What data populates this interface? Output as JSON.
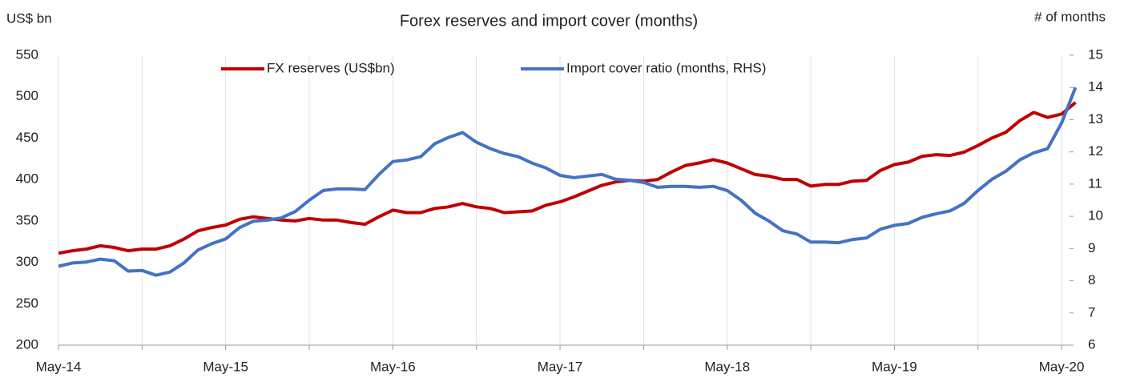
{
  "chart_data": {
    "type": "line",
    "title": "Forex reserves and import cover (months)",
    "y_label": "US$ bn",
    "y2_label": "# of months",
    "categories": [
      "May-14",
      null,
      null,
      null,
      null,
      null,
      null,
      null,
      null,
      null,
      null,
      null,
      "May-15",
      null,
      null,
      null,
      null,
      null,
      null,
      null,
      null,
      null,
      null,
      null,
      "May-16",
      null,
      null,
      null,
      null,
      null,
      null,
      null,
      null,
      null,
      null,
      null,
      "May-17",
      null,
      null,
      null,
      null,
      null,
      null,
      null,
      null,
      null,
      null,
      null,
      "May-18",
      null,
      null,
      null,
      null,
      null,
      null,
      null,
      null,
      null,
      null,
      null,
      "May-19",
      null,
      null,
      null,
      null,
      null,
      null,
      null,
      null,
      null,
      null,
      null,
      "May-20",
      null
    ],
    "series": [
      {
        "name": "FX reserves (US$bn)",
        "color": "#c00000",
        "values": [
          311,
          314,
          316,
          320,
          318,
          314,
          316,
          316,
          320,
          328,
          338,
          342,
          345,
          352,
          355,
          353,
          351,
          350,
          353,
          351,
          351,
          348,
          346,
          355,
          363,
          360,
          360,
          365,
          367,
          371,
          367,
          365,
          360,
          361,
          362,
          369,
          373,
          379,
          386,
          393,
          397,
          399,
          398,
          400,
          409,
          417,
          420,
          424,
          420,
          413,
          406,
          404,
          400,
          400,
          392,
          394,
          394,
          398,
          399,
          411,
          418,
          421,
          428,
          430,
          429,
          433,
          441,
          450,
          457,
          471,
          481,
          475,
          479,
          493
        ]
      },
      {
        "name": "Import cover ratio (months, RHS)",
        "color": "#4472c4",
        "axis": "y2",
        "values": [
          8.45,
          8.55,
          8.58,
          8.67,
          8.62,
          8.3,
          8.32,
          8.17,
          8.27,
          8.55,
          8.95,
          9.15,
          9.3,
          9.65,
          9.85,
          9.88,
          9.95,
          10.15,
          10.5,
          10.8,
          10.85,
          10.85,
          10.83,
          11.3,
          11.7,
          11.75,
          11.85,
          12.25,
          12.45,
          12.6,
          12.3,
          12.1,
          11.95,
          11.85,
          11.65,
          11.5,
          11.27,
          11.2,
          11.25,
          11.3,
          11.15,
          11.12,
          11.05,
          10.9,
          10.93,
          10.93,
          10.9,
          10.93,
          10.8,
          10.5,
          10.1,
          9.85,
          9.55,
          9.45,
          9.2,
          9.2,
          9.18,
          9.28,
          9.33,
          9.6,
          9.72,
          9.78,
          9.97,
          10.08,
          10.17,
          10.4,
          10.8,
          11.15,
          11.4,
          11.75,
          11.97,
          12.1,
          12.9,
          14.0
        ]
      }
    ],
    "ylim": [
      200,
      550
    ],
    "yticks": [
      200,
      250,
      300,
      350,
      400,
      450,
      500,
      550
    ],
    "y2lim": [
      6,
      15
    ],
    "y2ticks": [
      6,
      7,
      8,
      9,
      10,
      11,
      12,
      13,
      14,
      15
    ],
    "grid": true,
    "legend": "top"
  }
}
